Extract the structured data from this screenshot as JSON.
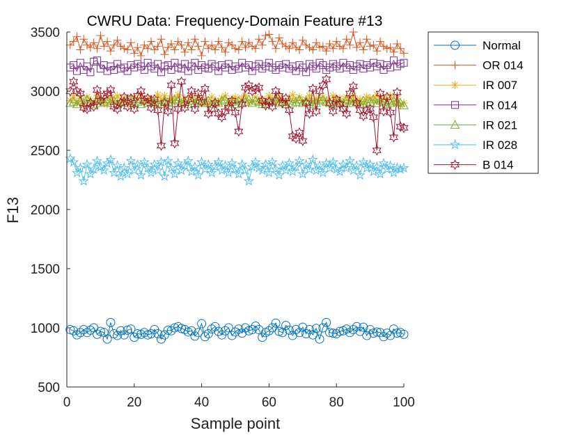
{
  "chart_data": {
    "type": "line",
    "title": "CWRU Data: Frequency-Domain Feature #13",
    "xlabel": "Sample point",
    "ylabel": "F13",
    "xlim": [
      0,
      100
    ],
    "ylim": [
      500,
      3500
    ],
    "x_ticks": [
      "0",
      "20",
      "40",
      "60",
      "80",
      "100"
    ],
    "y_ticks": [
      "500",
      "1000",
      "1500",
      "2000",
      "2500",
      "3000",
      "3500"
    ],
    "grid": false,
    "legend_position": "outside-top-right",
    "x": [
      1,
      2,
      3,
      4,
      5,
      6,
      7,
      8,
      9,
      10,
      11,
      12,
      13,
      14,
      15,
      16,
      17,
      18,
      19,
      20,
      21,
      22,
      23,
      24,
      25,
      26,
      27,
      28,
      29,
      30,
      31,
      32,
      33,
      34,
      35,
      36,
      37,
      38,
      39,
      40,
      41,
      42,
      43,
      44,
      45,
      46,
      47,
      48,
      49,
      50,
      51,
      52,
      53,
      54,
      55,
      56,
      57,
      58,
      59,
      60,
      61,
      62,
      63,
      64,
      65,
      66,
      67,
      68,
      69,
      70,
      71,
      72,
      73,
      74,
      75,
      76,
      77,
      78,
      79,
      80,
      81,
      82,
      83,
      84,
      85,
      86,
      87,
      88,
      89,
      90,
      91,
      92,
      93,
      94,
      95,
      96,
      97,
      98,
      99,
      100
    ],
    "series": [
      {
        "name": "Normal",
        "color": "#0072BD",
        "marker": "circle",
        "values": [
          985,
          975,
          940,
          960,
          985,
          960,
          980,
          1000,
          945,
          970,
          960,
          905,
          1045,
          950,
          935,
          975,
          940,
          980,
          990,
          920,
          950,
          945,
          960,
          940,
          950,
          985,
          950,
          905,
          940,
          980,
          975,
          1000,
          1010,
          995,
          985,
          965,
          975,
          930,
          960,
          1035,
          925,
          950,
          990,
          1010,
          970,
          940,
          975,
          1000,
          935,
          965,
          990,
          955,
          1000,
          975,
          985,
          1015,
          985,
          920,
          960,
          975,
          1000,
          1040,
          970,
          960,
          1020,
          980,
          935,
          985,
          960,
          1005,
          950,
          985,
          940,
          995,
          905,
          1000,
          1045,
          960,
          955,
          950,
          970,
          975,
          990,
          960,
          985,
          1010,
          970,
          1005,
          935,
          985,
          955,
          965,
          960,
          925,
          955,
          935,
          990,
          955,
          960,
          945
        ]
      },
      {
        "name": "OR 014",
        "color": "#D95319",
        "marker": "plus",
        "values": [
          3390,
          3420,
          3460,
          3350,
          3440,
          3390,
          3370,
          3410,
          3360,
          3470,
          3380,
          3420,
          3340,
          3390,
          3430,
          3380,
          3360,
          3350,
          3410,
          3320,
          3370,
          3300,
          3390,
          3360,
          3420,
          3350,
          3380,
          3440,
          3310,
          3370,
          3400,
          3350,
          3420,
          3390,
          3330,
          3410,
          3350,
          3440,
          3380,
          3300,
          3420,
          3360,
          3390,
          3350,
          3420,
          3370,
          3330,
          3410,
          3390,
          3360,
          3350,
          3420,
          3370,
          3410,
          3380,
          3360,
          3440,
          3390,
          3470,
          3480,
          3420,
          3360,
          3450,
          3400,
          3380,
          3360,
          3410,
          3370,
          3350,
          3430,
          3390,
          3370,
          3350,
          3410,
          3370,
          3380,
          3340,
          3400,
          3360,
          3420,
          3380,
          3360,
          3440,
          3390,
          3500,
          3370,
          3410,
          3350,
          3440,
          3380,
          3390,
          3340,
          3420,
          3380,
          3360,
          3370,
          3330,
          3400,
          3360,
          3320
        ]
      },
      {
        "name": "IR 007",
        "color": "#EDB120",
        "marker": "asterisk",
        "values": [
          2920,
          2960,
          2900,
          2940,
          2880,
          2950,
          2920,
          2900,
          2960,
          2910,
          2930,
          2890,
          2950,
          2920,
          2960,
          2900,
          2940,
          2910,
          2880,
          2950,
          2930,
          2960,
          2900,
          2940,
          2920,
          2890,
          2970,
          2930,
          2960,
          2900,
          2940,
          2920,
          2970,
          2900,
          2940,
          2910,
          2950,
          2920,
          2960,
          2900,
          2930,
          2890,
          2950,
          2920,
          2900,
          2940,
          2960,
          2900,
          2930,
          2950,
          2910,
          2940,
          2960,
          2900,
          2920,
          2950,
          2910,
          2930,
          2900,
          2960,
          2940,
          2910,
          2950,
          2920,
          2900,
          2940,
          2970,
          2920,
          2950,
          2900,
          2930,
          2960,
          2910,
          2940,
          2920,
          2950,
          2900,
          2930,
          2960,
          2910,
          2940,
          2900,
          2950,
          2920,
          2960,
          2910,
          2930,
          2900,
          2950,
          2940,
          2920,
          2970,
          2910,
          2940,
          2930,
          2960,
          2900,
          2940,
          2880,
          2900
        ]
      },
      {
        "name": "IR 014",
        "color": "#7E2F8E",
        "marker": "square",
        "values": [
          3200,
          3220,
          3170,
          3240,
          3180,
          3210,
          3160,
          3250,
          3260,
          3190,
          3220,
          3170,
          3210,
          3180,
          3230,
          3190,
          3200,
          3170,
          3220,
          3200,
          3230,
          3210,
          3180,
          3240,
          3210,
          3190,
          3230,
          3160,
          3210,
          3220,
          3180,
          3240,
          3200,
          3190,
          3230,
          3170,
          3210,
          3240,
          3180,
          3220,
          3200,
          3190,
          3230,
          3210,
          3170,
          3220,
          3200,
          3230,
          3180,
          3210,
          3190,
          3240,
          3200,
          3220,
          3170,
          3210,
          3230,
          3190,
          3210,
          3240,
          3200,
          3180,
          3220,
          3200,
          3230,
          3190,
          3210,
          3170,
          3220,
          3200,
          3160,
          3230,
          3210,
          3190,
          3240,
          3220,
          3180,
          3200,
          3230,
          3210,
          3190,
          3240,
          3200,
          3220,
          3180,
          3210,
          3230,
          3190,
          3220,
          3200,
          3240,
          3210,
          3230,
          3180,
          3220,
          3200,
          3260,
          3210,
          3230,
          3240
        ]
      },
      {
        "name": "IR 021",
        "color": "#77AC30",
        "marker": "triangle",
        "values": [
          2900,
          2910,
          2890,
          2920,
          2900,
          2930,
          2910,
          2890,
          2920,
          2900,
          2910,
          2930,
          2900,
          2920,
          2890,
          2910,
          2900,
          2920,
          2930,
          2900,
          2910,
          2890,
          2920,
          2900,
          2930,
          2910,
          2900,
          2890,
          2920,
          2910,
          2900,
          2930,
          2920,
          2900,
          2910,
          2890,
          2920,
          2900,
          2930,
          2910,
          2900,
          2920,
          2890,
          2910,
          2900,
          2920,
          2930,
          2900,
          2910,
          2890,
          2920,
          2900,
          2910,
          2930,
          2900,
          2920,
          2910,
          2890,
          2900,
          2920,
          2910,
          2930,
          2900,
          2910,
          2890,
          2920,
          2900,
          2910,
          2930,
          2900,
          2920,
          2910,
          2890,
          2900,
          2920,
          2930,
          2910,
          2900,
          2890,
          2920,
          2910,
          2900,
          2930,
          2920,
          2900,
          2910,
          2890,
          2920,
          2900,
          2910,
          2930,
          2900,
          2920,
          2910,
          2890,
          2900,
          2920,
          2910,
          2900,
          2880
        ]
      },
      {
        "name": "IR 028",
        "color": "#4DBEEE",
        "marker": "pentagram",
        "values": [
          2430,
          2400,
          2310,
          2350,
          2240,
          2380,
          2300,
          2340,
          2410,
          2360,
          2330,
          2390,
          2420,
          2310,
          2370,
          2280,
          2350,
          2300,
          2410,
          2330,
          2380,
          2290,
          2400,
          2350,
          2310,
          2380,
          2330,
          2400,
          2280,
          2410,
          2350,
          2300,
          2390,
          2330,
          2370,
          2410,
          2320,
          2360,
          2290,
          2400,
          2340,
          2380,
          2310,
          2360,
          2400,
          2330,
          2370,
          2310,
          2390,
          2340,
          2300,
          2380,
          2330,
          2240,
          2360,
          2400,
          2350,
          2330,
          2380,
          2310,
          2400,
          2340,
          2290,
          2370,
          2330,
          2390,
          2320,
          2360,
          2410,
          2300,
          2380,
          2340,
          2420,
          2330,
          2370,
          2310,
          2390,
          2350,
          2400,
          2340,
          2320,
          2380,
          2350,
          2410,
          2330,
          2370,
          2290,
          2400,
          2350,
          2380,
          2320,
          2360,
          2300,
          2390,
          2340,
          2370,
          2310,
          2350,
          2340,
          2350
        ]
      },
      {
        "name": "B 014",
        "color": "#A2142F",
        "marker": "hexagram",
        "values": [
          3000,
          3080,
          3000,
          2980,
          2860,
          2850,
          2900,
          2870,
          3010,
          2920,
          2960,
          2980,
          3010,
          2870,
          2850,
          2900,
          2950,
          2870,
          2940,
          2850,
          2960,
          3000,
          2920,
          2940,
          2860,
          2930,
          2840,
          2540,
          2900,
          2830,
          3050,
          2560,
          2850,
          3080,
          2860,
          2930,
          3000,
          2850,
          2980,
          2910,
          3020,
          2810,
          2850,
          2900,
          2810,
          2780,
          2830,
          2860,
          2920,
          2820,
          2660,
          2890,
          3030,
          3050,
          3000,
          3020,
          3030,
          2920,
          2880,
          2910,
          2870,
          3000,
          2960,
          2900,
          2940,
          2840,
          2620,
          2600,
          2650,
          2580,
          2900,
          2810,
          3020,
          2830,
          3000,
          3050,
          3100,
          2900,
          2830,
          2930,
          2890,
          2850,
          2810,
          2980,
          3040,
          2900,
          2840,
          2790,
          2840,
          2850,
          2780,
          2500,
          2980,
          2830,
          2950,
          2820,
          2610,
          2990,
          2700,
          2690
        ]
      }
    ]
  }
}
